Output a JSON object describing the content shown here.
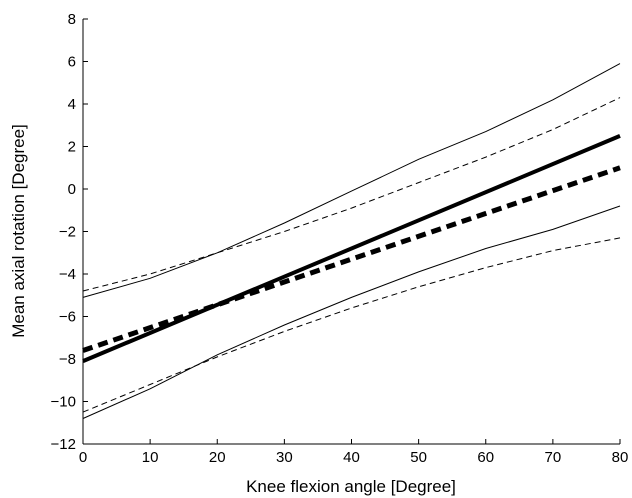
{
  "chart_data": {
    "type": "line",
    "title": "",
    "xlabel": "Knee flexion angle [Degree]",
    "ylabel": "Mean axial rotation [Degree]",
    "xlim": [
      0,
      80
    ],
    "ylim": [
      -12,
      8
    ],
    "xticks": [
      0,
      10,
      20,
      30,
      40,
      50,
      60,
      70,
      80
    ],
    "yticks": [
      -12,
      -10,
      -8,
      -6,
      -4,
      -2,
      0,
      2,
      4,
      6,
      8
    ],
    "grid": false,
    "legend": "none",
    "series": [
      {
        "style": "solid-thick",
        "x": [
          0,
          80
        ],
        "y": [
          -8.1,
          2.5
        ]
      },
      {
        "style": "dashed-thick",
        "x": [
          0,
          80
        ],
        "y": [
          -7.6,
          1.0
        ]
      },
      {
        "style": "solid-thin",
        "x": [
          0,
          10,
          20,
          30,
          40,
          50,
          60,
          70,
          80
        ],
        "y": [
          -5.1,
          -4.2,
          -3.0,
          -1.6,
          -0.1,
          1.4,
          2.7,
          4.2,
          5.9
        ]
      },
      {
        "style": "solid-thin",
        "x": [
          0,
          10,
          20,
          30,
          40,
          50,
          60,
          70,
          80
        ],
        "y": [
          -10.8,
          -9.4,
          -7.8,
          -6.4,
          -5.1,
          -3.9,
          -2.8,
          -1.9,
          -0.8
        ]
      },
      {
        "style": "dashed-thin",
        "x": [
          0,
          10,
          20,
          30,
          40,
          50,
          60,
          70,
          80
        ],
        "y": [
          -4.8,
          -4.0,
          -3.0,
          -2.0,
          -0.9,
          0.3,
          1.5,
          2.8,
          4.3
        ]
      },
      {
        "style": "dashed-thin",
        "x": [
          0,
          10,
          20,
          30,
          40,
          50,
          60,
          70,
          80
        ],
        "y": [
          -10.5,
          -9.2,
          -7.9,
          -6.7,
          -5.6,
          -4.6,
          -3.7,
          -2.9,
          -2.3
        ]
      }
    ]
  }
}
